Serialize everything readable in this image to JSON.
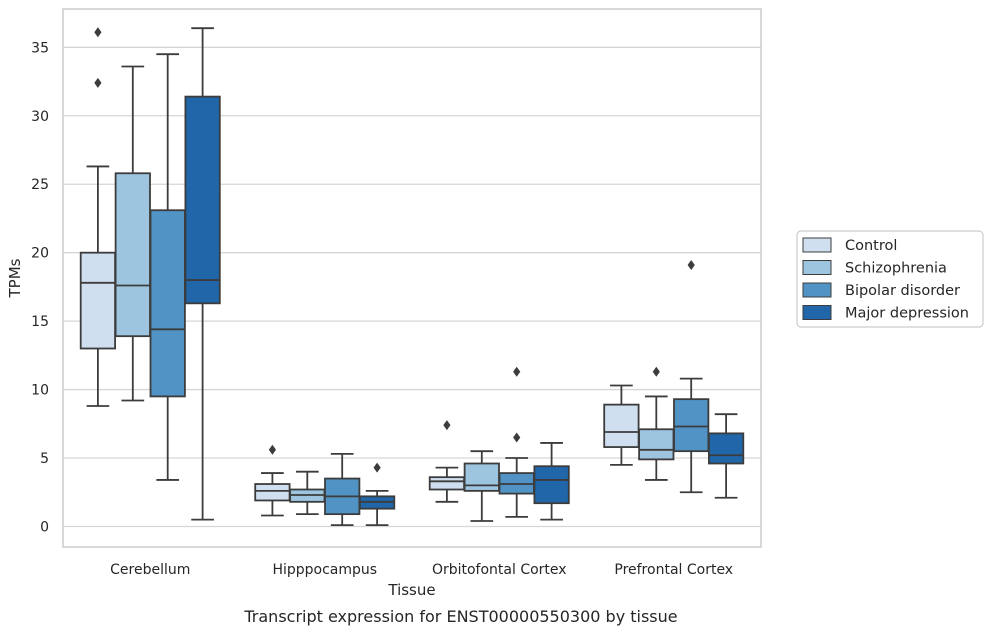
{
  "chart_data": {
    "type": "box",
    "title": "",
    "caption": "Transcript expression for ENST00000550300 by tissue",
    "xlabel": "Tissue",
    "ylabel": "TPMs",
    "ylim": [
      -1.5,
      37.8
    ],
    "yticks": [
      0,
      5,
      10,
      15,
      20,
      25,
      30,
      35
    ],
    "grid": "horizontal",
    "legend_position": "right",
    "categories": [
      "Cerebellum",
      "Hipppocampus",
      "Orbitofontal Cortex",
      "Prefrontal Cortex"
    ],
    "series": [
      {
        "name": "Control",
        "color": "#d0dff0",
        "boxes": [
          {
            "whislo": 8.8,
            "q1": 13.0,
            "med": 17.8,
            "q3": 20.0,
            "whishi": 26.3,
            "fliers": [
              36.1,
              32.4
            ]
          },
          {
            "whislo": 0.8,
            "q1": 1.9,
            "med": 2.6,
            "q3": 3.1,
            "whishi": 3.9,
            "fliers": [
              5.6
            ]
          },
          {
            "whislo": 1.8,
            "q1": 2.7,
            "med": 3.3,
            "q3": 3.6,
            "whishi": 4.3,
            "fliers": [
              7.4
            ]
          },
          {
            "whislo": 4.5,
            "q1": 5.8,
            "med": 6.9,
            "q3": 8.9,
            "whishi": 10.3,
            "fliers": []
          }
        ]
      },
      {
        "name": "Schizophrenia",
        "color": "#9ec5df",
        "boxes": [
          {
            "whislo": 9.2,
            "q1": 13.9,
            "med": 17.6,
            "q3": 25.8,
            "whishi": 33.6,
            "fliers": []
          },
          {
            "whislo": 0.9,
            "q1": 1.8,
            "med": 2.3,
            "q3": 2.7,
            "whishi": 4.0,
            "fliers": []
          },
          {
            "whislo": 0.4,
            "q1": 2.6,
            "med": 3.0,
            "q3": 4.6,
            "whishi": 5.5,
            "fliers": []
          },
          {
            "whislo": 3.4,
            "q1": 4.9,
            "med": 5.6,
            "q3": 7.1,
            "whishi": 9.5,
            "fliers": [
              11.3
            ]
          }
        ]
      },
      {
        "name": "Bipolar disorder",
        "color": "#5093c4",
        "boxes": [
          {
            "whislo": 3.4,
            "q1": 9.5,
            "med": 14.4,
            "q3": 23.1,
            "whishi": 34.5,
            "fliers": []
          },
          {
            "whislo": 0.1,
            "q1": 0.9,
            "med": 2.2,
            "q3": 3.5,
            "whishi": 5.3,
            "fliers": []
          },
          {
            "whislo": 0.7,
            "q1": 2.4,
            "med": 3.1,
            "q3": 3.9,
            "whishi": 5.0,
            "fliers": [
              6.5,
              11.3
            ]
          },
          {
            "whislo": 2.5,
            "q1": 5.5,
            "med": 7.3,
            "q3": 9.3,
            "whishi": 10.8,
            "fliers": [
              19.1
            ]
          }
        ]
      },
      {
        "name": "Major depression",
        "color": "#2066a8",
        "boxes": [
          {
            "whislo": 0.5,
            "q1": 16.3,
            "med": 18.0,
            "q3": 31.4,
            "whishi": 36.4,
            "fliers": []
          },
          {
            "whislo": 0.1,
            "q1": 1.3,
            "med": 1.8,
            "q3": 2.2,
            "whishi": 2.6,
            "fliers": [
              4.3
            ]
          },
          {
            "whislo": 0.5,
            "q1": 1.7,
            "med": 3.4,
            "q3": 4.4,
            "whishi": 6.1,
            "fliers": []
          },
          {
            "whislo": 2.1,
            "q1": 4.6,
            "med": 5.2,
            "q3": 6.8,
            "whishi": 8.2,
            "fliers": []
          }
        ]
      }
    ]
  }
}
